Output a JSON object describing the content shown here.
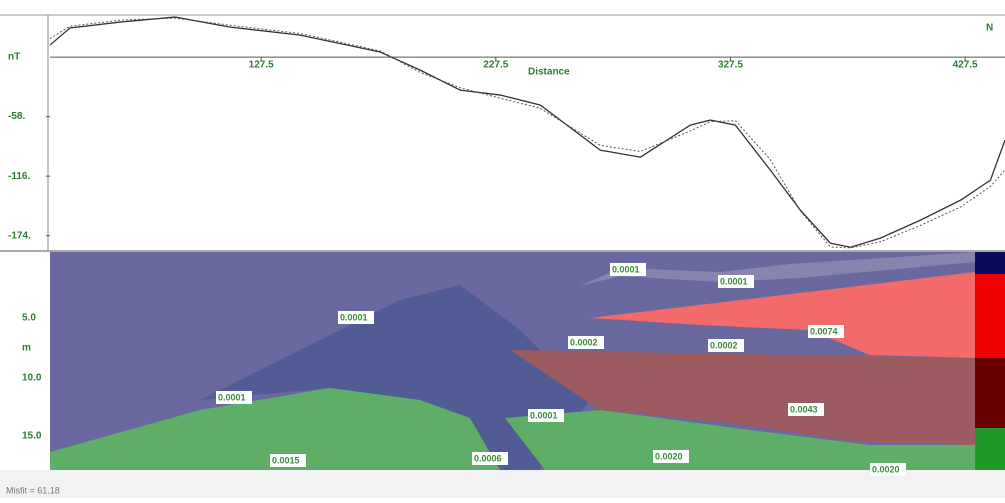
{
  "chart_data": {
    "type": "line",
    "y_label": "nT",
    "x_label": "Distance",
    "annotation": "N",
    "x": [
      37.5,
      46.0,
      67.4,
      90.8,
      114.3,
      144.1,
      178.2,
      195.3,
      212.3,
      229.4,
      246.5,
      272.0,
      289.1,
      310.4,
      318.9,
      329.6,
      344.5,
      357.3,
      370.1,
      378.7,
      391.4,
      408.5,
      425.6,
      438.3,
      444.5
    ],
    "series": [
      {
        "color": "#333333",
        "line_style": "solid",
        "values": [
          11.7,
          28.3,
          34.1,
          39.0,
          29.2,
          21.4,
          4.9,
          -12.7,
          -32.2,
          -37.0,
          -46.8,
          -90.7,
          -97.5,
          -66.3,
          -61.4,
          -66.3,
          -110.2,
          -149.2,
          -181.4,
          -185.3,
          -176.4,
          -158.9,
          -139.4,
          -119.9,
          -80.9
        ]
      },
      {
        "color": "#555555",
        "line_style": "dotted",
        "values": [
          18.0,
          30.0,
          36.0,
          38.0,
          31.0,
          23.0,
          6.0,
          -15.0,
          -30.0,
          -40.0,
          -50.0,
          -86.0,
          -92.0,
          -72.0,
          -63.0,
          -62.0,
          -100.0,
          -150.0,
          -185.0,
          -186.0,
          -180.0,
          -164.0,
          -146.0,
          -126.0,
          -110.0
        ]
      }
    ],
    "xlim": [
      37.5,
      444.5
    ],
    "ylim": [
      -188,
      41
    ],
    "xticks": [
      127.5,
      227.5,
      327.5,
      427.5
    ],
    "yticks": [
      {
        "value": -58,
        "label": "-58."
      },
      {
        "value": -116,
        "label": "-116."
      },
      {
        "value": -174,
        "label": "-174."
      }
    ]
  },
  "model": {
    "depth_unit": "m",
    "depth_labels": [
      "5.0",
      "10.0",
      "15.0"
    ],
    "labels": [
      "0.0001",
      "0.0001",
      "0.0001",
      "0.0002",
      "0.0002",
      "0.0074",
      "0.0001",
      "0.0001",
      "0.0043",
      "0.0015",
      "0.0006",
      "0.0020",
      "0.0020"
    ],
    "misfit": "Misfit = 61.18"
  }
}
